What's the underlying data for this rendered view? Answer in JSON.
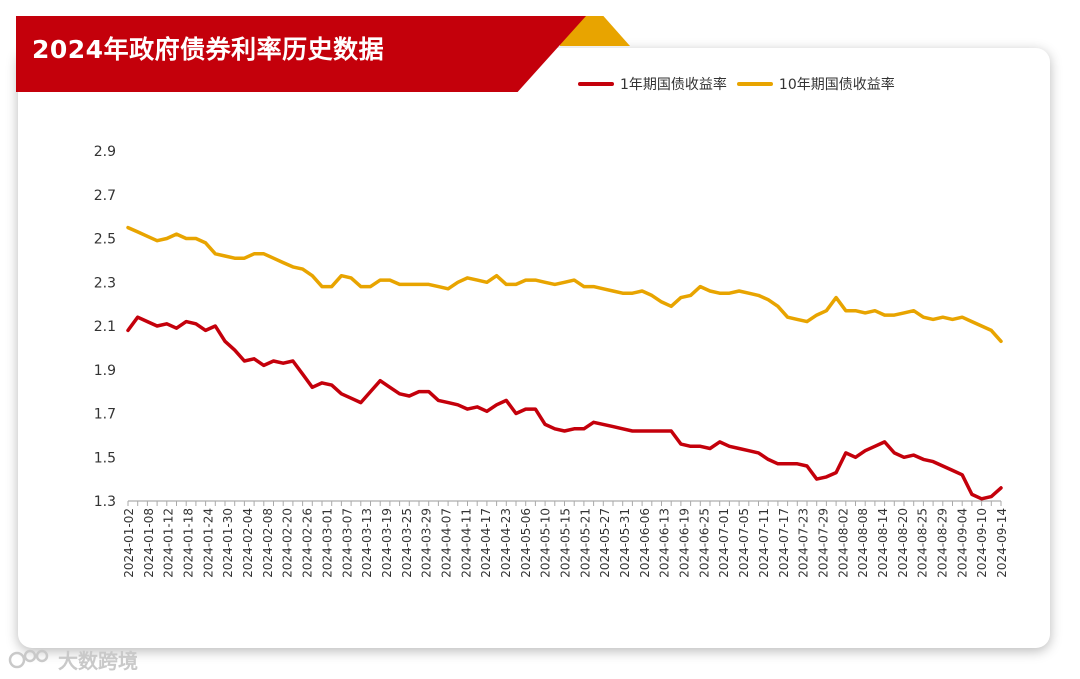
{
  "title": "2024年政府债券利率历史数据",
  "watermark": "大数跨境",
  "chart_data": {
    "type": "line",
    "title": "2024年政府债券利率历史数据",
    "xlabel": "",
    "ylabel": "",
    "ylim": [
      1.3,
      2.9
    ],
    "yticks": [
      1.3,
      1.5,
      1.7,
      1.9,
      2.1,
      2.3,
      2.5,
      2.7,
      2.9
    ],
    "x_tick_labels": [
      "2024-01-02",
      "2024-01-08",
      "2024-01-12",
      "2024-01-18",
      "2024-01-24",
      "2024-01-30",
      "2024-02-04",
      "2024-02-08",
      "2024-02-20",
      "2024-02-26",
      "2024-03-01",
      "2024-03-07",
      "2024-03-13",
      "2024-03-19",
      "2024-03-25",
      "2024-03-29",
      "2024-04-07",
      "2024-04-11",
      "2024-04-17",
      "2024-04-23",
      "2024-05-06",
      "2024-05-10",
      "2024-05-15",
      "2024-05-21",
      "2024-05-27",
      "2024-05-31",
      "2024-06-06",
      "2024-06-13",
      "2024-06-19",
      "2024-06-25",
      "2024-07-01",
      "2024-07-05",
      "2024-07-11",
      "2024-07-17",
      "2024-07-23",
      "2024-07-29",
      "2024-08-02",
      "2024-08-08",
      "2024-08-14",
      "2024-08-20",
      "2024-08-25",
      "2024-08-29",
      "2024-09-04",
      "2024-09-10",
      "2024-09-14"
    ],
    "grid": false,
    "legend_position": "top-right",
    "series": [
      {
        "name": "1年期国债收益率",
        "color": "#c4000b",
        "values": [
          2.08,
          2.14,
          2.12,
          2.1,
          2.11,
          2.09,
          2.12,
          2.11,
          2.08,
          2.1,
          2.03,
          1.99,
          1.94,
          1.95,
          1.92,
          1.94,
          1.93,
          1.94,
          1.88,
          1.82,
          1.84,
          1.83,
          1.79,
          1.77,
          1.75,
          1.8,
          1.85,
          1.82,
          1.79,
          1.78,
          1.8,
          1.8,
          1.76,
          1.75,
          1.74,
          1.72,
          1.73,
          1.71,
          1.74,
          1.76,
          1.7,
          1.72,
          1.72,
          1.65,
          1.63,
          1.62,
          1.63,
          1.63,
          1.66,
          1.65,
          1.64,
          1.63,
          1.62,
          1.62,
          1.62,
          1.62,
          1.62,
          1.56,
          1.55,
          1.55,
          1.54,
          1.57,
          1.55,
          1.54,
          1.53,
          1.52,
          1.49,
          1.47,
          1.47,
          1.47,
          1.46,
          1.4,
          1.41,
          1.43,
          1.52,
          1.5,
          1.53,
          1.55,
          1.57,
          1.52,
          1.5,
          1.51,
          1.49,
          1.48,
          1.46,
          1.44,
          1.42,
          1.33,
          1.31,
          1.32,
          1.36
        ]
      },
      {
        "name": "10年期国债收益率",
        "color": "#e8a400",
        "values": [
          2.55,
          2.53,
          2.51,
          2.49,
          2.5,
          2.52,
          2.5,
          2.5,
          2.48,
          2.43,
          2.42,
          2.41,
          2.41,
          2.43,
          2.43,
          2.41,
          2.39,
          2.37,
          2.36,
          2.33,
          2.28,
          2.28,
          2.33,
          2.32,
          2.28,
          2.28,
          2.31,
          2.31,
          2.29,
          2.29,
          2.29,
          2.29,
          2.28,
          2.27,
          2.3,
          2.32,
          2.31,
          2.3,
          2.33,
          2.29,
          2.29,
          2.31,
          2.31,
          2.3,
          2.29,
          2.3,
          2.31,
          2.28,
          2.28,
          2.27,
          2.26,
          2.25,
          2.25,
          2.26,
          2.24,
          2.21,
          2.19,
          2.23,
          2.24,
          2.28,
          2.26,
          2.25,
          2.25,
          2.26,
          2.25,
          2.24,
          2.22,
          2.19,
          2.14,
          2.13,
          2.12,
          2.15,
          2.17,
          2.23,
          2.17,
          2.17,
          2.16,
          2.17,
          2.15,
          2.15,
          2.16,
          2.17,
          2.14,
          2.13,
          2.14,
          2.13,
          2.14,
          2.12,
          2.1,
          2.08,
          2.03
        ]
      }
    ]
  }
}
